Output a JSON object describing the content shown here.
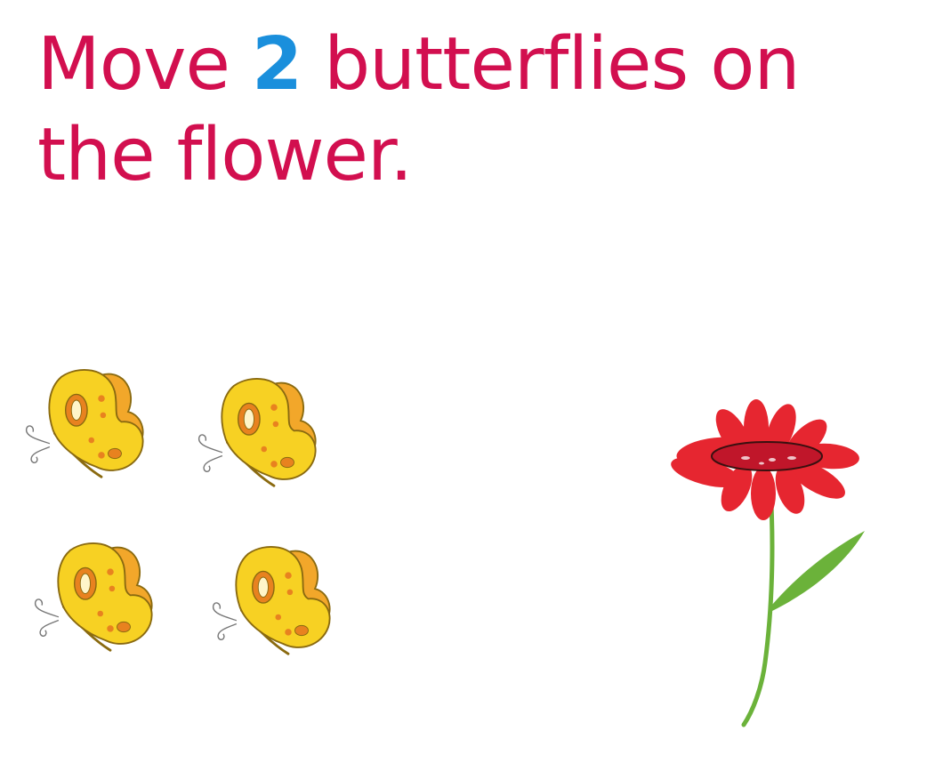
{
  "instruction": {
    "before": "Move",
    "count": "2",
    "after_line1": "butterflies on",
    "line2": "the flower."
  },
  "colors": {
    "text": "#d20f4f",
    "count": "#1a8fdc",
    "butterfly_wing": "#f7d123",
    "butterfly_wing_back": "#f2a72a",
    "butterfly_outline": "#8a6a10",
    "butterfly_spot": "#e8821f",
    "flower_petal": "#e62630",
    "flower_center": "#c0162a",
    "stem": "#6bb23a"
  },
  "items": {
    "butterflies": [
      {
        "name": "butterfly-1",
        "icon": "butterfly-icon"
      },
      {
        "name": "butterfly-2",
        "icon": "butterfly-icon"
      },
      {
        "name": "butterfly-3",
        "icon": "butterfly-icon"
      },
      {
        "name": "butterfly-4",
        "icon": "butterfly-icon"
      }
    ],
    "target": {
      "name": "flower",
      "icon": "flower-icon"
    }
  }
}
